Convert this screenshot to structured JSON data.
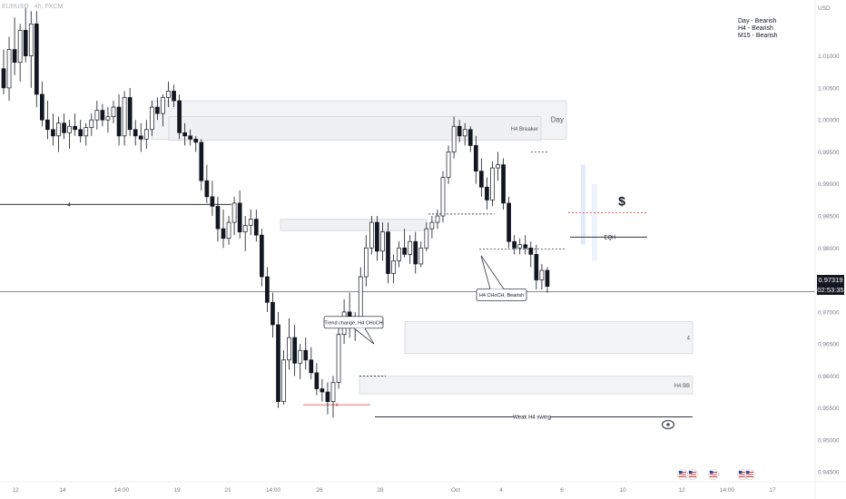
{
  "header": {
    "symbol": "EURUSD",
    "timeframe": "4h",
    "exchange": "FXCM"
  },
  "bias_panel": {
    "lines": [
      "Day - Bearish",
      "H4 - Bearish",
      "M15 - Bearish"
    ]
  },
  "current_price": {
    "value": "0.97319",
    "countdown": "02:53:35"
  },
  "chart_data": {
    "type": "candlestick",
    "y_axis": {
      "unit": "USD",
      "ticks": [
        1.01,
        1.005,
        1.0,
        0.995,
        0.99,
        0.985,
        0.98,
        0.975,
        0.97,
        0.965,
        0.96,
        0.955,
        0.95,
        0.945
      ],
      "labels": [
        "1.01000",
        "1.00500",
        "1.00000",
        "0.99500",
        "0.99000",
        "0.98500",
        "0.98000",
        "0.97500",
        "0.97000",
        "0.96500",
        "0.96000",
        "0.95500",
        "0.95000",
        "0.94500"
      ],
      "range": [
        0.9422,
        1.0176
      ]
    },
    "x_axis": {
      "labels": [
        "12",
        "14",
        "14:00",
        "19",
        "21",
        "14:00",
        "26",
        "28",
        "Oct",
        "4",
        "6",
        "10",
        "12",
        "14:00",
        "17"
      ]
    },
    "zones": [
      {
        "label": "Day",
        "top": 1.003,
        "bottom": 0.997,
        "color": "#f2f3f5"
      },
      {
        "label": "H4 Breaker",
        "top": 1.0005,
        "bottom": 0.9968,
        "color": "#eef0f2"
      },
      {
        "label": "",
        "top": 0.9845,
        "bottom": 0.9827,
        "color": "#eef0f2"
      },
      {
        "label": "4",
        "top": 0.9685,
        "bottom": 0.9635,
        "color": "#f2f3f5"
      },
      {
        "label": "H4 BB",
        "top": 0.96,
        "bottom": 0.9572,
        "color": "#f2f3f5"
      }
    ],
    "levels": [
      {
        "label": "4",
        "price": 0.9868
      },
      {
        "label": "Weak H4 swing",
        "price": 0.9536
      },
      {
        "label": "EQH",
        "price": 0.9817
      }
    ],
    "callouts": [
      "Trend change, H4 CHoCH",
      "H4 CHoCH, Bearish"
    ],
    "annotations": [
      "$"
    ],
    "candles": [
      {
        "o": 1.008,
        "h": 1.011,
        "l": 1.004,
        "c": 1.005
      },
      {
        "o": 1.005,
        "h": 1.013,
        "l": 1.003,
        "c": 1.011
      },
      {
        "o": 1.011,
        "h": 1.016,
        "l": 1.007,
        "c": 1.009
      },
      {
        "o": 1.009,
        "h": 1.015,
        "l": 1.006,
        "c": 1.014
      },
      {
        "o": 1.014,
        "h": 1.0175,
        "l": 1.009,
        "c": 1.01
      },
      {
        "o": 1.01,
        "h": 1.017,
        "l": 1.005,
        "c": 1.015
      },
      {
        "o": 1.015,
        "h": 1.017,
        "l": 1.002,
        "c": 1.004
      },
      {
        "o": 1.004,
        "h": 1.006,
        "l": 0.999,
        "c": 1.0
      },
      {
        "o": 1.0,
        "h": 1.003,
        "l": 0.997,
        "c": 0.9985
      },
      {
        "o": 0.9985,
        "h": 1.001,
        "l": 0.996,
        "c": 0.9975
      },
      {
        "o": 0.9975,
        "h": 1.0005,
        "l": 0.995,
        "c": 0.9995
      },
      {
        "o": 0.9995,
        "h": 1.001,
        "l": 0.997,
        "c": 0.998
      },
      {
        "o": 0.998,
        "h": 1.0,
        "l": 0.9955,
        "c": 0.999
      },
      {
        "o": 0.999,
        "h": 1.001,
        "l": 0.9975,
        "c": 0.9985
      },
      {
        "o": 0.9985,
        "h": 1.0,
        "l": 0.9965,
        "c": 0.9975
      },
      {
        "o": 0.9975,
        "h": 0.9995,
        "l": 0.996,
        "c": 0.9988
      },
      {
        "o": 0.9988,
        "h": 1.001,
        "l": 0.9975,
        "c": 1.0
      },
      {
        "o": 1.0,
        "h": 1.003,
        "l": 0.9985,
        "c": 1.0015
      },
      {
        "o": 1.0015,
        "h": 1.0025,
        "l": 0.999,
        "c": 1.0
      },
      {
        "o": 1.0,
        "h": 1.002,
        "l": 0.998,
        "c": 1.0005
      },
      {
        "o": 1.0005,
        "h": 1.003,
        "l": 0.9995,
        "c": 1.002
      },
      {
        "o": 1.002,
        "h": 1.004,
        "l": 0.996,
        "c": 0.9975
      },
      {
        "o": 0.9975,
        "h": 1.0045,
        "l": 0.996,
        "c": 1.0035
      },
      {
        "o": 1.0035,
        "h": 1.005,
        "l": 0.9975,
        "c": 0.9985
      },
      {
        "o": 0.9985,
        "h": 1.0,
        "l": 0.996,
        "c": 0.9975
      },
      {
        "o": 0.9975,
        "h": 0.9995,
        "l": 0.995,
        "c": 0.997
      },
      {
        "o": 0.997,
        "h": 1.0,
        "l": 0.9955,
        "c": 0.9985
      },
      {
        "o": 0.9985,
        "h": 1.003,
        "l": 0.9975,
        "c": 1.002
      },
      {
        "o": 1.002,
        "h": 1.0035,
        "l": 1.0,
        "c": 1.001
      },
      {
        "o": 1.001,
        "h": 1.004,
        "l": 0.999,
        "c": 1.0035
      },
      {
        "o": 1.0035,
        "h": 1.006,
        "l": 1.002,
        "c": 1.0045
      },
      {
        "o": 1.0045,
        "h": 1.0055,
        "l": 1.002,
        "c": 1.003
      },
      {
        "o": 1.003,
        "h": 1.004,
        "l": 0.997,
        "c": 0.998
      },
      {
        "o": 0.998,
        "h": 0.9995,
        "l": 0.996,
        "c": 0.9975
      },
      {
        "o": 0.9975,
        "h": 0.9985,
        "l": 0.996,
        "c": 0.997
      },
      {
        "o": 0.997,
        "h": 0.9975,
        "l": 0.995,
        "c": 0.9965
      },
      {
        "o": 0.9965,
        "h": 0.997,
        "l": 0.989,
        "c": 0.9905
      },
      {
        "o": 0.9905,
        "h": 0.993,
        "l": 0.987,
        "c": 0.988
      },
      {
        "o": 0.988,
        "h": 0.9905,
        "l": 0.985,
        "c": 0.9865
      },
      {
        "o": 0.9865,
        "h": 0.988,
        "l": 0.981,
        "c": 0.983
      },
      {
        "o": 0.983,
        "h": 0.986,
        "l": 0.98,
        "c": 0.9815
      },
      {
        "o": 0.9815,
        "h": 0.985,
        "l": 0.9805,
        "c": 0.984
      },
      {
        "o": 0.984,
        "h": 0.988,
        "l": 0.982,
        "c": 0.987
      },
      {
        "o": 0.987,
        "h": 0.989,
        "l": 0.9815,
        "c": 0.9825
      },
      {
        "o": 0.9825,
        "h": 0.985,
        "l": 0.9795,
        "c": 0.9835
      },
      {
        "o": 0.9835,
        "h": 0.986,
        "l": 0.982,
        "c": 0.9845
      },
      {
        "o": 0.9845,
        "h": 0.986,
        "l": 0.981,
        "c": 0.982
      },
      {
        "o": 0.982,
        "h": 0.983,
        "l": 0.974,
        "c": 0.9755
      },
      {
        "o": 0.9755,
        "h": 0.977,
        "l": 0.97,
        "c": 0.9715
      },
      {
        "o": 0.9715,
        "h": 0.973,
        "l": 0.966,
        "c": 0.968
      },
      {
        "o": 0.968,
        "h": 0.97,
        "l": 0.955,
        "c": 0.956
      },
      {
        "o": 0.956,
        "h": 0.964,
        "l": 0.9555,
        "c": 0.9625
      },
      {
        "o": 0.9625,
        "h": 0.969,
        "l": 0.961,
        "c": 0.966
      },
      {
        "o": 0.966,
        "h": 0.968,
        "l": 0.96,
        "c": 0.962
      },
      {
        "o": 0.962,
        "h": 0.965,
        "l": 0.9595,
        "c": 0.964
      },
      {
        "o": 0.964,
        "h": 0.966,
        "l": 0.961,
        "c": 0.9625
      },
      {
        "o": 0.9625,
        "h": 0.9645,
        "l": 0.9595,
        "c": 0.9605
      },
      {
        "o": 0.9605,
        "h": 0.962,
        "l": 0.957,
        "c": 0.958
      },
      {
        "o": 0.958,
        "h": 0.9595,
        "l": 0.956,
        "c": 0.9575
      },
      {
        "o": 0.9575,
        "h": 0.959,
        "l": 0.954,
        "c": 0.956
      },
      {
        "o": 0.956,
        "h": 0.96,
        "l": 0.9535,
        "c": 0.959
      },
      {
        "o": 0.959,
        "h": 0.968,
        "l": 0.958,
        "c": 0.9665
      },
      {
        "o": 0.9665,
        "h": 0.972,
        "l": 0.965,
        "c": 0.97
      },
      {
        "o": 0.97,
        "h": 0.973,
        "l": 0.966,
        "c": 0.9675
      },
      {
        "o": 0.9675,
        "h": 0.97,
        "l": 0.9655,
        "c": 0.969
      },
      {
        "o": 0.969,
        "h": 0.977,
        "l": 0.968,
        "c": 0.9755
      },
      {
        "o": 0.9755,
        "h": 0.982,
        "l": 0.974,
        "c": 0.98
      },
      {
        "o": 0.98,
        "h": 0.985,
        "l": 0.979,
        "c": 0.984
      },
      {
        "o": 0.984,
        "h": 0.985,
        "l": 0.978,
        "c": 0.9795
      },
      {
        "o": 0.9795,
        "h": 0.984,
        "l": 0.978,
        "c": 0.9825
      },
      {
        "o": 0.9825,
        "h": 0.984,
        "l": 0.9745,
        "c": 0.976
      },
      {
        "o": 0.976,
        "h": 0.979,
        "l": 0.9745,
        "c": 0.978
      },
      {
        "o": 0.978,
        "h": 0.981,
        "l": 0.977,
        "c": 0.98
      },
      {
        "o": 0.98,
        "h": 0.983,
        "l": 0.9785,
        "c": 0.979
      },
      {
        "o": 0.979,
        "h": 0.982,
        "l": 0.9775,
        "c": 0.981
      },
      {
        "o": 0.981,
        "h": 0.9825,
        "l": 0.976,
        "c": 0.9775
      },
      {
        "o": 0.9775,
        "h": 0.981,
        "l": 0.977,
        "c": 0.98
      },
      {
        "o": 0.98,
        "h": 0.984,
        "l": 0.9795,
        "c": 0.983
      },
      {
        "o": 0.983,
        "h": 0.985,
        "l": 0.9815,
        "c": 0.984
      },
      {
        "o": 0.984,
        "h": 0.986,
        "l": 0.983,
        "c": 0.985
      },
      {
        "o": 0.985,
        "h": 0.992,
        "l": 0.984,
        "c": 0.991
      },
      {
        "o": 0.991,
        "h": 0.996,
        "l": 0.99,
        "c": 0.995
      },
      {
        "o": 0.995,
        "h": 1.0005,
        "l": 0.994,
        "c": 0.999
      },
      {
        "o": 0.999,
        "h": 1.0,
        "l": 0.9965,
        "c": 0.9975
      },
      {
        "o": 0.9975,
        "h": 0.9995,
        "l": 0.996,
        "c": 0.9985
      },
      {
        "o": 0.9985,
        "h": 0.999,
        "l": 0.995,
        "c": 0.996
      },
      {
        "o": 0.996,
        "h": 0.9975,
        "l": 0.99,
        "c": 0.992
      },
      {
        "o": 0.992,
        "h": 0.994,
        "l": 0.988,
        "c": 0.9895
      },
      {
        "o": 0.9895,
        "h": 0.991,
        "l": 0.986,
        "c": 0.9875
      },
      {
        "o": 0.9875,
        "h": 0.9935,
        "l": 0.9865,
        "c": 0.9925
      },
      {
        "o": 0.9925,
        "h": 0.995,
        "l": 0.9905,
        "c": 0.993
      },
      {
        "o": 0.993,
        "h": 0.994,
        "l": 0.986,
        "c": 0.987
      },
      {
        "o": 0.987,
        "h": 0.988,
        "l": 0.98,
        "c": 0.981
      },
      {
        "o": 0.981,
        "h": 0.982,
        "l": 0.979,
        "c": 0.98
      },
      {
        "o": 0.98,
        "h": 0.9815,
        "l": 0.979,
        "c": 0.9805
      },
      {
        "o": 0.9805,
        "h": 0.982,
        "l": 0.979,
        "c": 0.98
      },
      {
        "o": 0.98,
        "h": 0.981,
        "l": 0.977,
        "c": 0.979
      },
      {
        "o": 0.979,
        "h": 0.9805,
        "l": 0.9735,
        "c": 0.975
      },
      {
        "o": 0.975,
        "h": 0.9775,
        "l": 0.9735,
        "c": 0.9765
      },
      {
        "o": 0.9765,
        "h": 0.977,
        "l": 0.973,
        "c": 0.974
      }
    ]
  }
}
